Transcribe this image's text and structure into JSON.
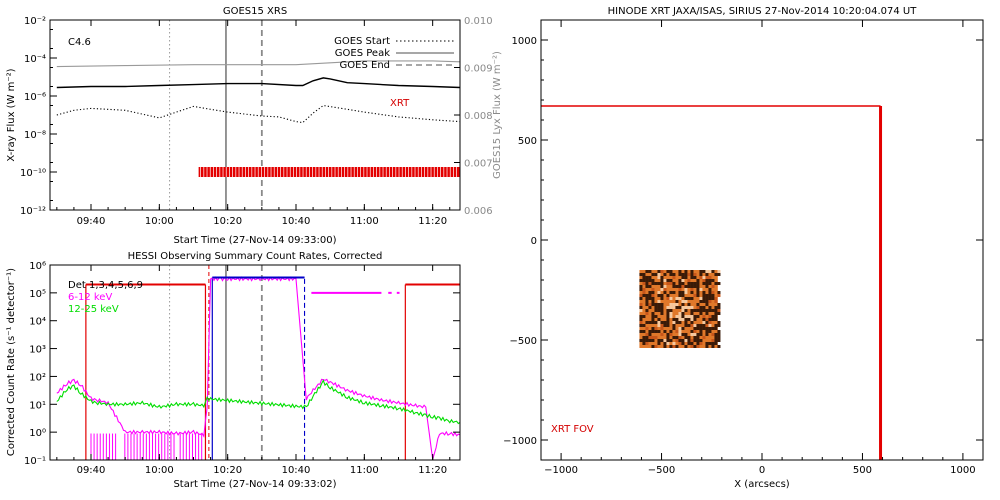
{
  "colors": {
    "axis": "#000000",
    "goes_right_axis": "#8a8a8a",
    "red": "#e30000",
    "magenta": "#ff00ff",
    "green": "#00dd00",
    "blue": "#0000c8",
    "xrt_image": "#e0782a"
  },
  "chart_data": [
    {
      "panel": "goes",
      "type": "line",
      "title": "GOES15 XRS",
      "xlabel": "Start Time (27-Nov-14 09:33:00)",
      "ylabel": "X-ray Flux (W m⁻²)",
      "ylabel_right": "GOES15 Lyx Flux (W m⁻²)",
      "xlim": [
        -2,
        118
      ],
      "x_unit_note": "minutes after 09:30 (axis printed as clock times)",
      "xticks": [
        10,
        30,
        50,
        70,
        90,
        110
      ],
      "xtick_labels": [
        "09:40",
        "10:00",
        "10:20",
        "10:40",
        "11:00",
        "11:20"
      ],
      "yscale": "log",
      "ylim_exp": [
        -12,
        -2
      ],
      "ytick_exps": [
        -12,
        -10,
        -8,
        -6,
        -4,
        -2
      ],
      "ytick_labels": [
        "10⁻¹²",
        "10⁻¹⁰",
        "10⁻⁸",
        "10⁻⁶",
        "10⁻⁴",
        "10⁻²"
      ],
      "y_right_ticks": [
        "0.010",
        "0.009",
        "0.008",
        "0.007",
        "0.006"
      ],
      "flare_class": "C4.6",
      "legend": [
        {
          "label": "GOES Start",
          "style": "dotted"
        },
        {
          "label": "GOES Peak",
          "style": "solid"
        },
        {
          "label": "GOES End",
          "style": "dashed"
        }
      ],
      "xrt_label": "XRT",
      "event_lines": [
        {
          "name": "start-dotted",
          "x": 33
        },
        {
          "name": "peak-solid",
          "x": 49.5
        },
        {
          "name": "end-dashed",
          "x": 60
        }
      ],
      "series": [
        {
          "name": "XRS long",
          "style": "black-solid",
          "x": [
            0,
            10,
            20,
            30,
            40,
            50,
            60,
            70,
            72,
            75,
            78,
            80,
            85,
            90,
            100,
            110,
            118
          ],
          "y_exp": [
            -5.55,
            -5.5,
            -5.5,
            -5.45,
            -5.4,
            -5.35,
            -5.35,
            -5.45,
            -5.45,
            -5.2,
            -5.05,
            -5.1,
            -5.3,
            -5.35,
            -5.45,
            -5.5,
            -5.55
          ]
        },
        {
          "name": "XRS short",
          "style": "black-dotted",
          "x": [
            0,
            5,
            10,
            20,
            30,
            35,
            40,
            45,
            50,
            60,
            65,
            70,
            72,
            75,
            78,
            85,
            90,
            100,
            110,
            118
          ],
          "y_exp": [
            -7.0,
            -6.75,
            -6.65,
            -6.75,
            -7.15,
            -6.85,
            -6.55,
            -6.7,
            -6.85,
            -7.05,
            -7.1,
            -7.35,
            -7.4,
            -6.9,
            -6.5,
            -6.7,
            -6.85,
            -7.1,
            -7.25,
            -7.35
          ]
        },
        {
          "name": "Lyx",
          "style": "gray-solid",
          "x": [
            0,
            20,
            40,
            60,
            70,
            80,
            90,
            100,
            110,
            118
          ],
          "y_exp": [
            -4.45,
            -4.4,
            -4.35,
            -4.35,
            -4.35,
            -4.25,
            -4.15,
            -4.15,
            -4.15,
            -4.2
          ]
        },
        {
          "name": "XRT coverage",
          "style": "red-bar",
          "x_range": [
            41.5,
            118
          ],
          "y_exp": -10
        }
      ]
    },
    {
      "panel": "hessi",
      "type": "line",
      "title": "HESSI Observing Summary Count Rates, Corrected",
      "xlabel": "Start Time (27-Nov-14 09:33:02)",
      "ylabel": "Corrected Count Rate (s⁻¹ detector⁻¹)",
      "xlim": [
        -2,
        118
      ],
      "xticks": [
        10,
        30,
        50,
        70,
        90,
        110
      ],
      "xtick_labels": [
        "09:40",
        "10:00",
        "10:20",
        "10:40",
        "11:00",
        "11:20"
      ],
      "yscale": "log",
      "ylim_exp": [
        -1,
        6
      ],
      "ytick_exps": [
        -1,
        0,
        1,
        2,
        3,
        4,
        5,
        6
      ],
      "ytick_labels": [
        "10⁻¹",
        "10⁰",
        "10¹",
        "10²",
        "10³",
        "10⁴",
        "10⁵",
        "10⁶"
      ],
      "legend": [
        {
          "label": "Det 1,3,4,5,6,9",
          "color": "#000000"
        },
        {
          "label": "6-12 keV",
          "color": "#ff00ff"
        },
        {
          "label": "12-25 keV",
          "color": "#00dd00"
        }
      ],
      "event_lines": [
        {
          "name": "start-dotted",
          "x": 33
        },
        {
          "name": "peak-solid",
          "x": 49.5
        },
        {
          "name": "end-dashed",
          "x": 60
        }
      ],
      "series": [
        {
          "name": "6-12 keV",
          "color": "#ff00ff",
          "x": [
            0,
            3,
            5,
            7,
            10,
            12,
            15,
            20,
            25,
            30,
            35,
            40,
            43,
            44,
            45,
            48,
            50,
            60,
            70,
            73,
            75,
            78,
            80,
            85,
            90,
            95,
            100,
            105,
            108,
            110,
            112,
            115,
            118
          ],
          "y_exp": [
            1.4,
            1.75,
            1.85,
            1.7,
            1.2,
            1.15,
            1.05,
            0.0,
            0.0,
            0.0,
            -0.05,
            0.0,
            -0.1,
            0.9,
            5.5,
            5.5,
            5.5,
            5.5,
            5.5,
            1.2,
            1.5,
            1.9,
            1.8,
            1.5,
            1.3,
            1.15,
            1.05,
            0.95,
            0.9,
            -1.0,
            -0.05,
            -0.05,
            -0.1
          ]
        },
        {
          "name": "12-25 keV",
          "color": "#00dd00",
          "x": [
            0,
            3,
            5,
            7,
            10,
            12,
            15,
            20,
            25,
            30,
            35,
            40,
            43,
            44,
            73,
            75,
            78,
            80,
            85,
            90,
            95,
            100,
            105,
            108,
            110,
            112,
            115,
            118
          ],
          "y_exp": [
            1.1,
            1.55,
            1.65,
            1.4,
            1.1,
            1.05,
            1.0,
            1.0,
            1.05,
            0.9,
            1.0,
            1.0,
            0.95,
            1.2,
            0.9,
            1.3,
            1.8,
            1.6,
            1.25,
            1.05,
            0.95,
            0.85,
            0.7,
            0.6,
            0.55,
            0.5,
            0.4,
            0.35
          ]
        },
        {
          "name": "attenuator-red",
          "color": "#e30000",
          "x_range": [
            8.5,
            43.5
          ],
          "y_exp": 5.3
        },
        {
          "name": "attenuator-red-2",
          "color": "#e30000",
          "x_range": [
            102,
            118
          ],
          "y_exp": 5.3
        },
        {
          "name": "night-blue",
          "color": "#0000c8",
          "x_range": [
            45.5,
            72.5
          ],
          "y_exp": 5.55
        }
      ]
    },
    {
      "panel": "xrt",
      "type": "scatter",
      "title": "HINODE XRT JAXA/ISAS, SIRIUS 27-Nov-2014 10:20:04.074 UT",
      "xlabel": "X (arcsecs)",
      "ylabel": "",
      "xlim": [
        -1100,
        1100
      ],
      "ylim": [
        -1100,
        1100
      ],
      "xticks": [
        -1000,
        -500,
        0,
        500,
        1000
      ],
      "yticks": [
        -1000,
        -500,
        0,
        500,
        1000
      ],
      "fov_label": "XRT FOV",
      "fov_box": {
        "x_min": -1100,
        "x_max": 590,
        "y_min": -1100,
        "y_max": 670
      },
      "image_box": {
        "x_min": -610,
        "x_max": -220,
        "y_min": -540,
        "y_max": -150
      }
    }
  ]
}
